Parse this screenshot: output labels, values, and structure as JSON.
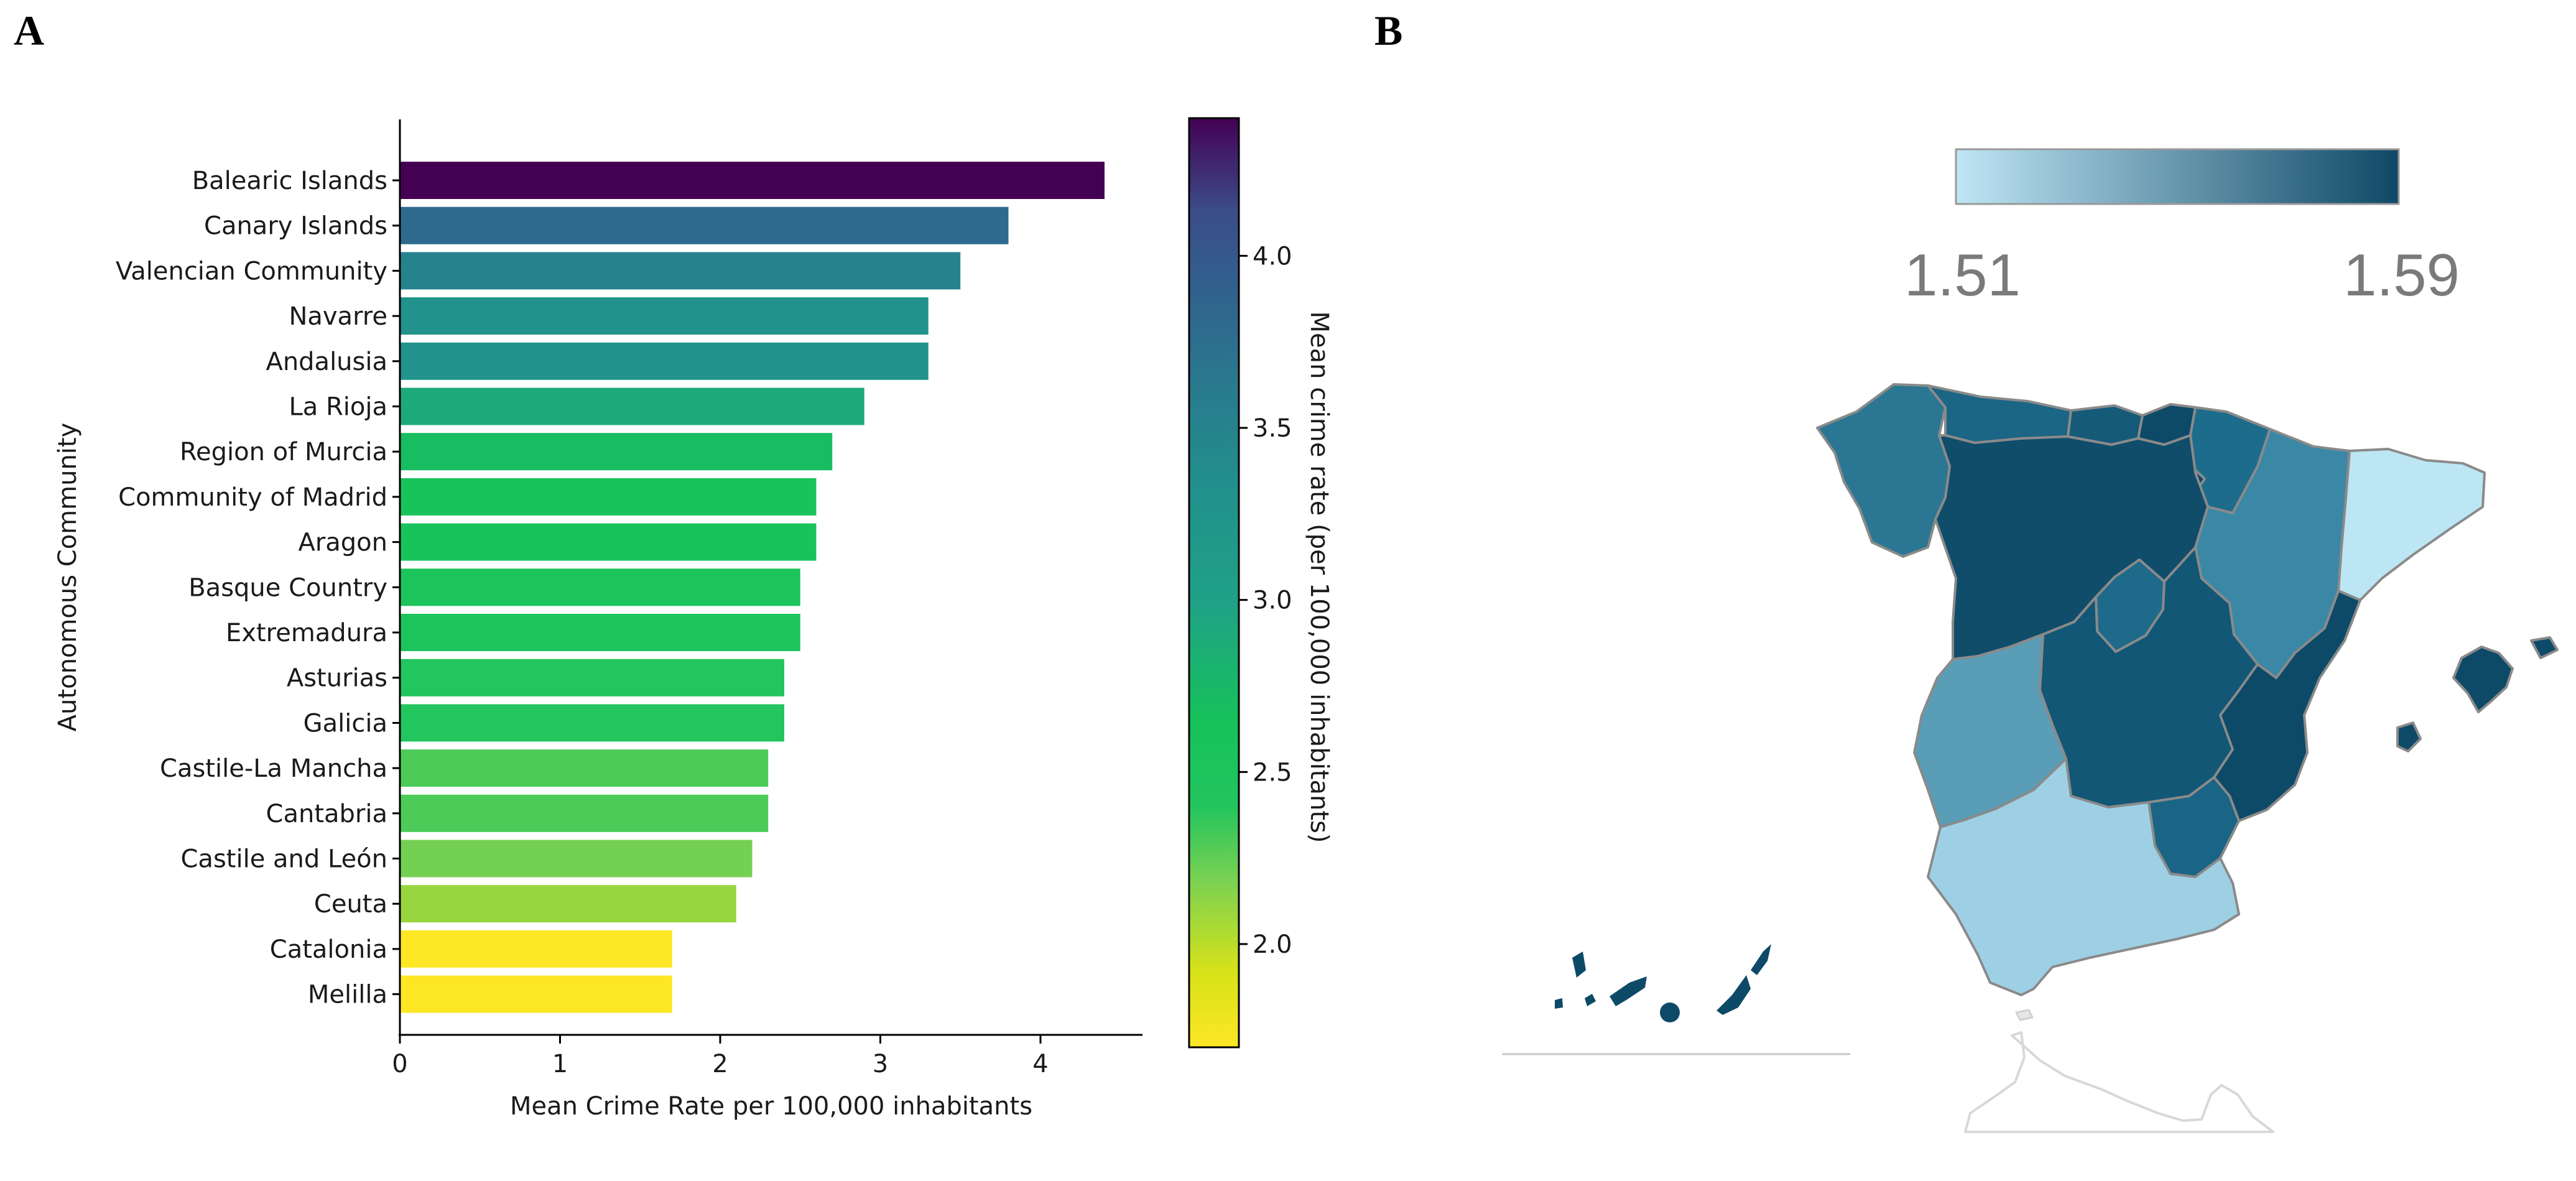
{
  "panels": {
    "a": "A",
    "b": "B"
  },
  "chart_data": [
    {
      "type": "bar",
      "orientation": "horizontal",
      "categories": [
        "Balearic Islands",
        "Canary Islands",
        "Valencian Community",
        "Navarre",
        "Andalusia",
        "La Rioja",
        "Region of Murcia",
        "Community of Madrid",
        "Aragon",
        "Basque Country",
        "Extremadura",
        "Asturias",
        "Galicia",
        "Castile-La Mancha",
        "Cantabria",
        "Castile and León",
        "Ceuta",
        "Catalonia",
        "Melilla"
      ],
      "values": [
        4.4,
        3.8,
        3.5,
        3.3,
        3.3,
        2.9,
        2.7,
        2.6,
        2.6,
        2.5,
        2.5,
        2.4,
        2.4,
        2.3,
        2.3,
        2.2,
        2.1,
        1.7,
        1.7
      ],
      "xlabel": "Mean Crime Rate per 100,000 inhabitants",
      "ylabel": "Autonomous Community",
      "xlim": [
        0,
        4.6
      ],
      "xticks": [
        "0",
        "1",
        "2",
        "3",
        "4"
      ],
      "grid": false,
      "colormap": "viridis-like",
      "colorbar": {
        "label": "Mean crime rate (per 100,000 inhabitants)",
        "range": [
          1.7,
          4.4
        ],
        "ticks": [
          "2.0",
          "2.5",
          "3.0",
          "3.5",
          "4.0"
        ]
      }
    },
    {
      "type": "choropleth",
      "legend": {
        "min_label": "1.51",
        "max_label": "1.59",
        "colors": [
          "#bfe6f5",
          "#0f4866"
        ]
      }
    }
  ]
}
